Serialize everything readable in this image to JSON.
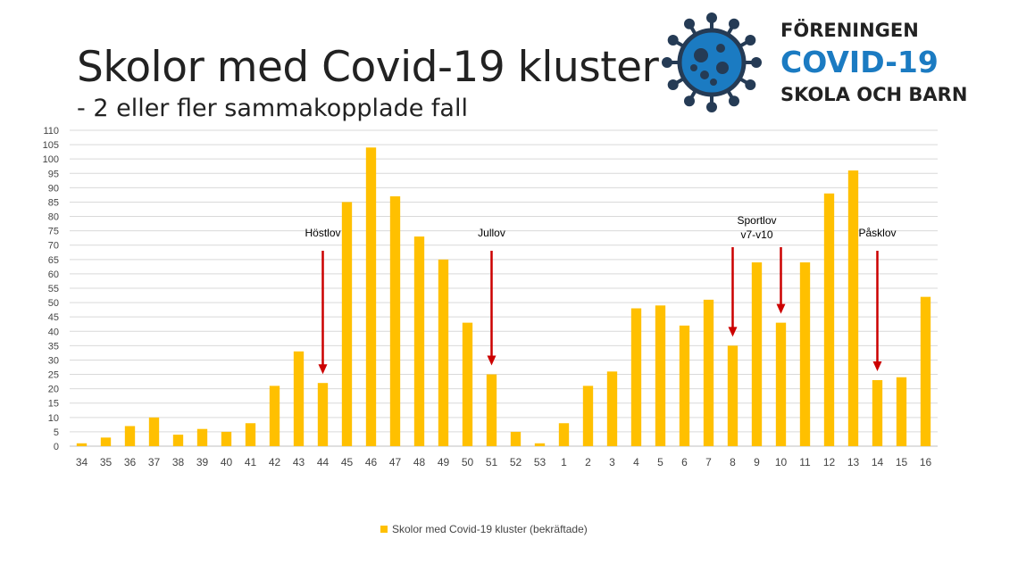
{
  "title": "Skolor med Covid-19 kluster",
  "subtitle": "- 2 eller fler sammakopplade fall",
  "logo": {
    "line1": "FÖRENINGEN",
    "line2": "COVID-19",
    "line3": "SKOLA OCH BARN",
    "icon": "virus-icon",
    "icon_color": "#1b7bc2",
    "icon_dark": "#253b55"
  },
  "colors": {
    "bar": "#ffc000",
    "arrow": "#cc0000",
    "grid": "#d9d9d9"
  },
  "chart_data": {
    "type": "bar",
    "categories": [
      "34",
      "35",
      "36",
      "37",
      "38",
      "39",
      "40",
      "41",
      "42",
      "43",
      "44",
      "45",
      "46",
      "47",
      "48",
      "49",
      "50",
      "51",
      "52",
      "53",
      "1",
      "2",
      "3",
      "4",
      "5",
      "6",
      "7",
      "8",
      "9",
      "10",
      "11",
      "12",
      "13",
      "14",
      "15",
      "16"
    ],
    "series": [
      {
        "name": "Skolor med Covid-19 kluster (bekräftade)",
        "values": [
          1,
          3,
          7,
          10,
          4,
          6,
          5,
          8,
          21,
          33,
          22,
          85,
          104,
          87,
          73,
          65,
          43,
          25,
          5,
          1,
          8,
          21,
          26,
          48,
          49,
          42,
          51,
          35,
          64,
          43,
          64,
          88,
          96,
          23,
          24,
          52
        ]
      }
    ],
    "ylim": [
      0,
      110
    ],
    "yticks": [
      0,
      5,
      10,
      15,
      20,
      25,
      30,
      35,
      40,
      45,
      50,
      55,
      60,
      65,
      70,
      75,
      80,
      85,
      90,
      95,
      100,
      105,
      110
    ],
    "grid": true,
    "legend": "bottom",
    "annotations": [
      {
        "text": [
          "Höstlov"
        ],
        "category": "44"
      },
      {
        "text": [
          "Jullov"
        ],
        "category": "51"
      },
      {
        "text": [
          "Sportlov",
          "v7-v10"
        ],
        "categories": [
          "8",
          "10"
        ]
      },
      {
        "text": [
          "Påsklov"
        ],
        "category": "14"
      }
    ]
  }
}
